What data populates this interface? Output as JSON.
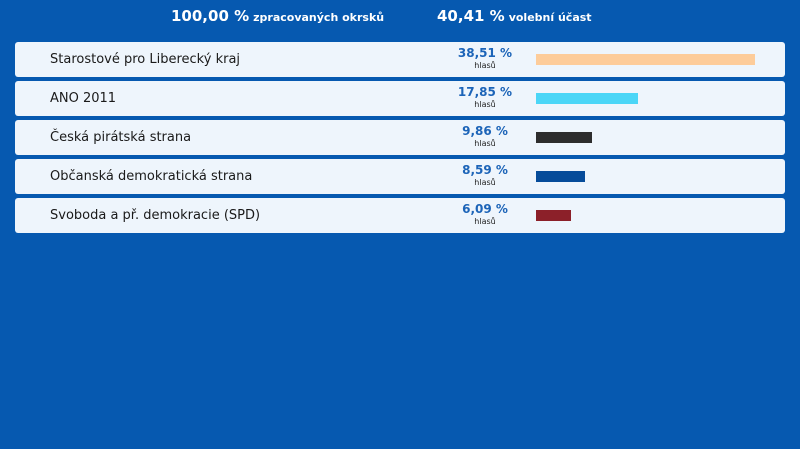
{
  "summary": {
    "processed_value": "100,00 %",
    "processed_label": "zpracovaných okrsků",
    "turnout_value": "40,41 %",
    "turnout_label": "volební účast"
  },
  "results": [
    {
      "party": "Starostové pro Liberecký kraj",
      "percent_text": "38,51 %",
      "percent": 38.51,
      "votes_label": "hlasů",
      "color": "#fdcc9a"
    },
    {
      "party": "ANO 2011",
      "percent_text": "17,85 %",
      "percent": 17.85,
      "votes_label": "hlasů",
      "color": "#4bd6f7"
    },
    {
      "party": "Česká pirátská strana",
      "percent_text": "9,86 %",
      "percent": 9.86,
      "votes_label": "hlasů",
      "color": "#2d2d2d"
    },
    {
      "party": "Občanská demokratická strana",
      "percent_text": "8,59 %",
      "percent": 8.59,
      "votes_label": "hlasů",
      "color": "#064c9a"
    },
    {
      "party": "Svoboda a př. demokracie (SPD)",
      "percent_text": "6,09 %",
      "percent": 6.09,
      "votes_label": "hlasů",
      "color": "#8c2029"
    }
  ]
}
